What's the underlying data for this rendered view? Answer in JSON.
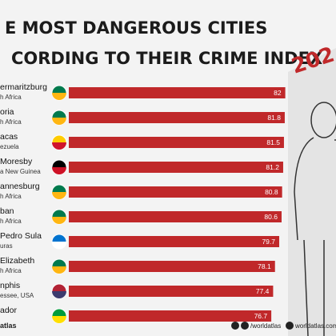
{
  "chart_data": {
    "type": "bar",
    "title": [
      "E  MOST DANGEROUS CITIES",
      "CORDING TO THEIR CRIME INDEX"
    ],
    "year": "202",
    "categories": [
      "ermaritzburg",
      "oria",
      "acas",
      "Moresby",
      "annesburg",
      "ban",
      "Pedro Sula",
      "Elizabeth",
      "nphis",
      "ador"
    ],
    "countries": [
      "h Africa",
      "h Africa",
      "ezuela",
      "a New Guinea",
      "h Africa",
      "h Africa",
      "uras",
      "h Africa",
      "essee, USA",
      null
    ],
    "values": [
      82,
      81.8,
      81.5,
      81.2,
      80.8,
      80.6,
      79.7,
      78.1,
      77.4,
      76.7
    ],
    "color": "#c0282a",
    "footer": [
      "atlas",
      "/worldatlas",
      "worldatlas.com"
    ]
  }
}
